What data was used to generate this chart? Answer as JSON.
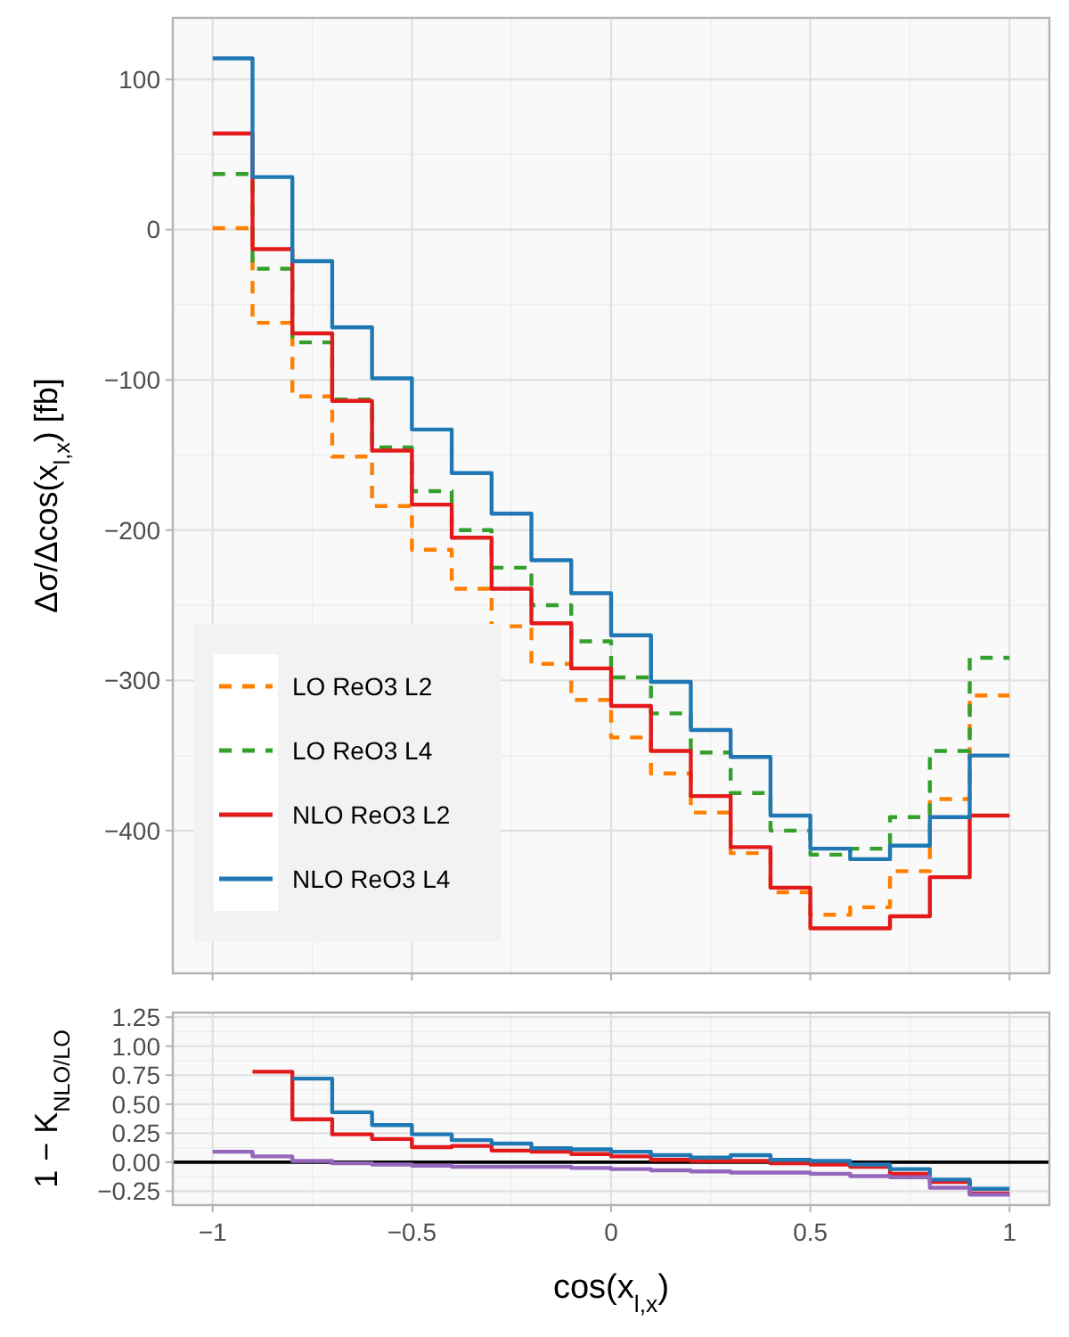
{
  "chart_data": [
    {
      "type": "step",
      "ylabel": "Δσ/Δcos(x$_{l,x}$) [fb]",
      "x": [
        -1,
        -0.9,
        -0.8,
        -0.7,
        -0.6,
        -0.5,
        -0.4,
        -0.3,
        -0.2,
        -0.1,
        0,
        0.1,
        0.2,
        0.3,
        0.4,
        0.5,
        0.6,
        0.7,
        0.8,
        0.9,
        1
      ],
      "xlim": [
        -1.1,
        1.1
      ],
      "xticks": [
        -1,
        -0.5,
        0,
        0.5,
        1
      ],
      "ylim": [
        -495,
        141
      ],
      "yticks": [
        {
          "value": -400,
          "label": "−400"
        },
        {
          "value": -300,
          "label": "−300"
        },
        {
          "value": -200,
          "label": "−200"
        },
        {
          "value": -100,
          "label": "−100"
        },
        0,
        100
      ],
      "tick_labels": "y",
      "grid": true,
      "legend": "bottom left",
      "series": [
        {
          "name": "LO ReO3 L2",
          "color": "#ff7f00",
          "line_style": "dashed",
          "values": [
            1,
            -62,
            -111,
            -151,
            -184,
            -213,
            -239,
            -264,
            -289,
            -313,
            -338,
            -362,
            -388,
            -415,
            -441,
            -456,
            -451,
            -427,
            -379,
            -310,
            -310
          ]
        },
        {
          "name": "LO ReO3 L4",
          "color": "#33a02c",
          "line_style": "dashed",
          "values": [
            37,
            -26,
            -75,
            -113,
            -145,
            -174,
            -200,
            -225,
            -250,
            -274,
            -298,
            -322,
            -348,
            -375,
            -400,
            -416,
            -412,
            -391,
            -347,
            -285,
            -285
          ]
        },
        {
          "name": "NLO ReO3 L2",
          "color": "#e31a1c",
          "line_style": "solid",
          "values": [
            64,
            -13,
            -69,
            -114,
            -147,
            -183,
            -205,
            -239,
            -262,
            -292,
            -317,
            -347,
            -377,
            -411,
            -438,
            -465,
            -465,
            -457,
            -431,
            -390,
            -390
          ]
        },
        {
          "name": "NLO ReO3 L4",
          "color": "#1f78b4",
          "line_style": "solid",
          "values": [
            114,
            35,
            -21,
            -65,
            -99,
            -133,
            -162,
            -189,
            -220,
            -242,
            -270,
            -301,
            -333,
            -351,
            -390,
            -412,
            -419,
            -410,
            -391,
            -350,
            -350
          ]
        }
      ]
    },
    {
      "type": "step",
      "xlabel": "cos(x$_{l,x}$)",
      "ylabel": "1 − K$_{NLO/LO}$",
      "x": [
        -1,
        -0.9,
        -0.8,
        -0.7,
        -0.6,
        -0.5,
        -0.4,
        -0.3,
        -0.2,
        -0.1,
        0,
        0.1,
        0.2,
        0.3,
        0.4,
        0.5,
        0.6,
        0.7,
        0.8,
        0.9,
        1
      ],
      "xlim": [
        -1.1,
        1.1
      ],
      "xticks": [
        {
          "value": -1,
          "label": "−1"
        },
        {
          "value": -0.5,
          "label": "−0.5"
        },
        0,
        0.5,
        1
      ],
      "ylim": [
        -0.37,
        1.29
      ],
      "yticks": [
        {
          "value": -0.25,
          "label": "−0.25"
        },
        {
          "value": 0,
          "label": "0.00"
        },
        {
          "value": 0.25,
          "label": "0.25"
        },
        {
          "value": 0.5,
          "label": "0.50"
        },
        {
          "value": 0.75,
          "label": "0.75"
        },
        {
          "value": 1,
          "label": "1.00"
        },
        {
          "value": 1.25,
          "label": "1.25"
        }
      ],
      "grid": true,
      "ref_lines": [
        {
          "axis": "y",
          "value": 0,
          "color": "#000000"
        }
      ],
      "series": [
        {
          "color": "#e31a1c",
          "values": [
            null,
            0.78,
            0.37,
            0.24,
            0.2,
            0.13,
            0.14,
            0.1,
            0.09,
            0.07,
            0.05,
            0.02,
            0.01,
            0.01,
            -0.01,
            -0.02,
            -0.04,
            -0.1,
            -0.17,
            -0.27,
            -0.27
          ]
        },
        {
          "color": "#1f78b4",
          "values": [
            null,
            null,
            0.72,
            0.43,
            0.32,
            0.24,
            0.19,
            0.16,
            0.12,
            0.11,
            0.09,
            0.06,
            0.04,
            0.06,
            0.02,
            0.01,
            -0.02,
            -0.06,
            -0.15,
            -0.23,
            -0.23
          ]
        },
        {
          "color": "#9467bd",
          "values": [
            0.09,
            0.05,
            0.01,
            -0.01,
            -0.02,
            -0.03,
            -0.04,
            -0.04,
            -0.04,
            -0.05,
            -0.06,
            -0.07,
            -0.08,
            -0.09,
            -0.09,
            -0.1,
            -0.12,
            -0.13,
            -0.22,
            -0.28,
            -0.28
          ]
        }
      ]
    }
  ]
}
